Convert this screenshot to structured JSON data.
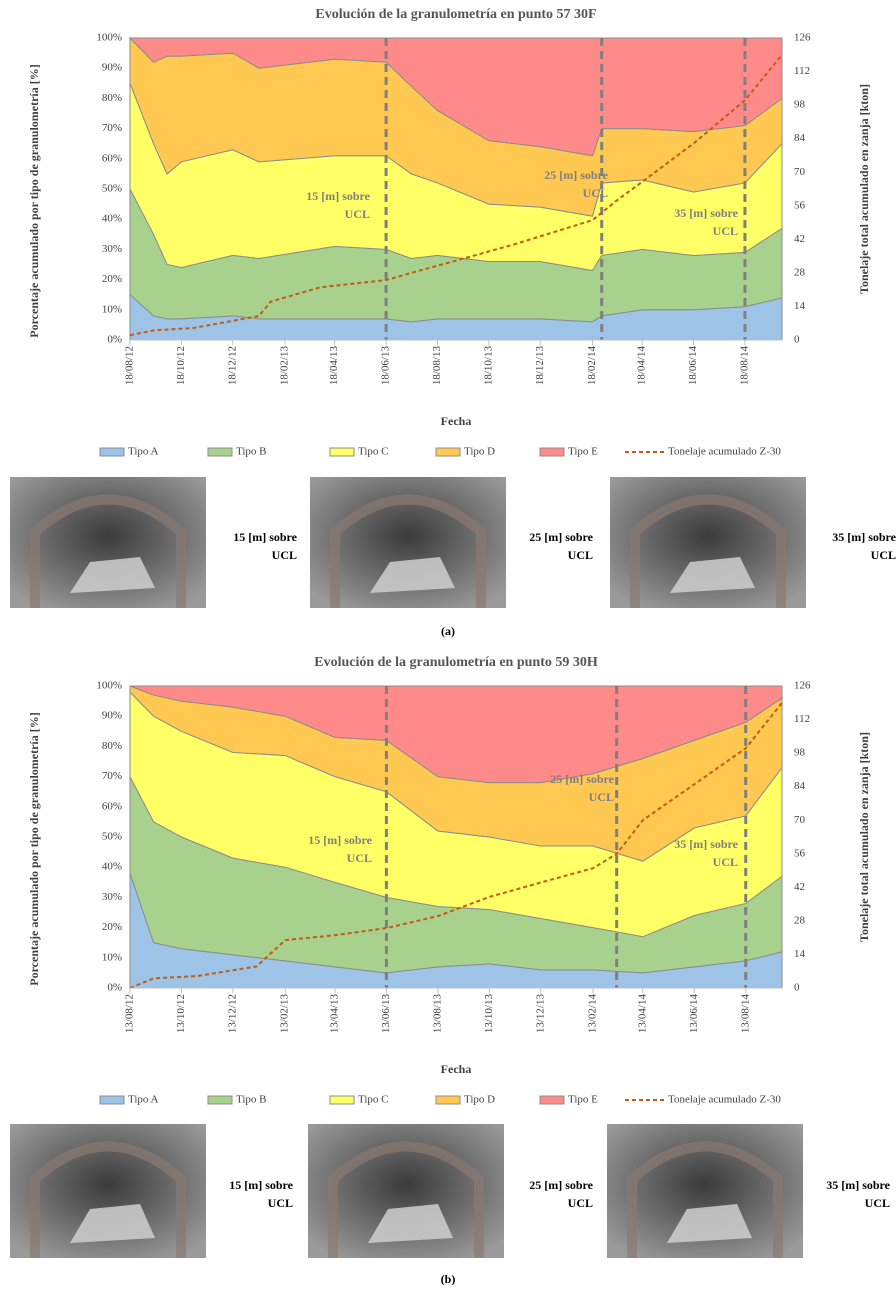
{
  "chart_data": [
    {
      "type": "area",
      "title": "Evolución de la granulometría en punto 57 30F",
      "x_label": "Fecha",
      "y_label": "Porcentaje acumulado por tipo de granulometría [%]",
      "y2_label": "Tonelaje total acumulado en zanja [kton]",
      "stacked": true,
      "legend": "bottom",
      "xlim": [
        "2012-08-18",
        "2014-10-01"
      ],
      "xticks": [
        {
          "value": "2012-08-18",
          "label": "18/08/12"
        },
        {
          "value": "2012-10-18",
          "label": "18/10/12"
        },
        {
          "value": "2012-12-18",
          "label": "18/12/12"
        },
        {
          "value": "2013-02-18",
          "label": "18/02/13"
        },
        {
          "value": "2013-04-18",
          "label": "18/04/13"
        },
        {
          "value": "2013-06-18",
          "label": "18/06/13"
        },
        {
          "value": "2013-08-18",
          "label": "18/08/13"
        },
        {
          "value": "2013-10-18",
          "label": "18/10/13"
        },
        {
          "value": "2013-12-18",
          "label": "18/12/13"
        },
        {
          "value": "2014-02-18",
          "label": "18/02/14"
        },
        {
          "value": "2014-04-18",
          "label": "18/04/14"
        },
        {
          "value": "2014-06-18",
          "label": "18/06/14"
        },
        {
          "value": "2014-08-18",
          "label": "18/08/14"
        }
      ],
      "ylim": [
        0,
        100
      ],
      "yticks": [
        {
          "value": 0,
          "label": "0%"
        },
        {
          "value": 10,
          "label": "10%"
        },
        {
          "value": 20,
          "label": "20%"
        },
        {
          "value": 30,
          "label": "30%"
        },
        {
          "value": 40,
          "label": "40%"
        },
        {
          "value": 50,
          "label": "50%"
        },
        {
          "value": 60,
          "label": "60%"
        },
        {
          "value": 70,
          "label": "70%"
        },
        {
          "value": 80,
          "label": "80%"
        },
        {
          "value": 90,
          "label": "90%"
        },
        {
          "value": 100,
          "label": "100%"
        }
      ],
      "y2lim": [
        0,
        126
      ],
      "y2ticks": [
        0,
        14,
        28,
        42,
        56,
        70,
        84,
        98,
        112,
        126
      ],
      "x": [
        "2012-08-18",
        "2012-09-15",
        "2012-10-01",
        "2012-10-18",
        "2012-12-18",
        "2013-01-18",
        "2013-04-18",
        "2013-06-18",
        "2013-07-18",
        "2013-08-18",
        "2013-10-18",
        "2013-12-18",
        "2014-02-18",
        "2014-03-01",
        "2014-04-18",
        "2014-06-18",
        "2014-08-18",
        "2014-10-01"
      ],
      "series": [
        {
          "name": "Tipo A",
          "color": "#9dc3e6",
          "values": [
            15,
            8,
            7,
            7,
            8,
            7,
            7,
            7,
            6,
            7,
            7,
            7,
            6,
            8,
            10,
            10,
            11,
            14
          ]
        },
        {
          "name": "Tipo B",
          "color": "#a9d18e",
          "values": [
            35,
            27,
            18,
            17,
            20,
            20,
            24,
            23,
            21,
            21,
            19,
            19,
            17,
            20,
            20,
            18,
            18,
            23
          ]
        },
        {
          "name": "Tipo C",
          "color": "#ffff66",
          "values": [
            35,
            30,
            30,
            35,
            35,
            32,
            30,
            31,
            28,
            24,
            19,
            18,
            18,
            24,
            23,
            21,
            23,
            28
          ]
        },
        {
          "name": "Tipo D",
          "color": "#ffc850",
          "values": [
            15,
            27,
            39,
            35,
            32,
            31,
            32,
            31,
            29,
            24,
            21,
            20,
            20,
            18,
            17,
            20,
            19,
            15
          ]
        },
        {
          "name": "Tipo E",
          "color": "#ff8a8a",
          "values": [
            0,
            8,
            6,
            6,
            5,
            10,
            7,
            8,
            16,
            24,
            34,
            36,
            39,
            30,
            30,
            31,
            29,
            20
          ]
        },
        {
          "name": "Tonelaje acumulado Z-30",
          "type": "line",
          "axis": "y2",
          "color": "#c55a11",
          "x": [
            "2012-08-18",
            "2012-09-15",
            "2012-11-01",
            "2012-12-18",
            "2013-01-18",
            "2013-02-01",
            "2013-04-01",
            "2013-06-18",
            "2013-07-18",
            "2013-09-18",
            "2013-11-18",
            "2014-02-18",
            "2014-03-18",
            "2014-04-18",
            "2014-06-18",
            "2014-08-18",
            "2014-10-01"
          ],
          "values": [
            2,
            4,
            5,
            8,
            10,
            16,
            22,
            25,
            28,
            34,
            40,
            50,
            58,
            66,
            82,
            100,
            119
          ]
        }
      ],
      "markers": [
        {
          "x": "2013-06-18",
          "label": [
            "15 [m] sobre",
            "UCL"
          ]
        },
        {
          "x": "2014-03-01",
          "label": [
            "25 [m] sobre",
            "UCL"
          ]
        },
        {
          "x": "2014-08-18",
          "label": [
            "35 [m] sobre",
            "UCL"
          ]
        }
      ]
    },
    {
      "type": "area",
      "title": "Evolución de la granulometría en punto 59 30H",
      "x_label": "Fecha",
      "y_label": "Porcentaje acumulado por tipo de granulometría [%]",
      "y2_label": "Tonelaje total acumulado en zanja [kton]",
      "stacked": true,
      "legend": "bottom",
      "xlim": [
        "2012-08-13",
        "2014-09-25"
      ],
      "xticks": [
        {
          "value": "2012-08-13",
          "label": "13/08/12"
        },
        {
          "value": "2012-10-13",
          "label": "13/10/12"
        },
        {
          "value": "2012-12-13",
          "label": "13/12/12"
        },
        {
          "value": "2013-02-13",
          "label": "13/02/13"
        },
        {
          "value": "2013-04-13",
          "label": "13/04/13"
        },
        {
          "value": "2013-06-13",
          "label": "13/06/13"
        },
        {
          "value": "2013-08-13",
          "label": "13/08/13"
        },
        {
          "value": "2013-10-13",
          "label": "13/10/13"
        },
        {
          "value": "2013-12-13",
          "label": "13/12/13"
        },
        {
          "value": "2014-02-13",
          "label": "13/02/14"
        },
        {
          "value": "2014-04-13",
          "label": "13/04/14"
        },
        {
          "value": "2014-06-13",
          "label": "13/06/14"
        },
        {
          "value": "2014-08-13",
          "label": "13/08/14"
        }
      ],
      "ylim": [
        0,
        100
      ],
      "yticks": [
        {
          "value": 0,
          "label": "0%"
        },
        {
          "value": 10,
          "label": "10%"
        },
        {
          "value": 20,
          "label": "20%"
        },
        {
          "value": 30,
          "label": "30%"
        },
        {
          "value": 40,
          "label": "40%"
        },
        {
          "value": 50,
          "label": "50%"
        },
        {
          "value": 60,
          "label": "60%"
        },
        {
          "value": 70,
          "label": "70%"
        },
        {
          "value": 80,
          "label": "80%"
        },
        {
          "value": 90,
          "label": "90%"
        },
        {
          "value": 100,
          "label": "100%"
        }
      ],
      "y2lim": [
        0,
        126
      ],
      "y2ticks": [
        0,
        14,
        28,
        42,
        56,
        70,
        84,
        98,
        112,
        126
      ],
      "x": [
        "2012-08-13",
        "2012-09-10",
        "2012-10-13",
        "2012-12-13",
        "2013-02-13",
        "2013-04-13",
        "2013-06-13",
        "2013-08-13",
        "2013-10-13",
        "2013-12-13",
        "2014-02-13",
        "2014-04-13",
        "2014-06-13",
        "2014-08-13",
        "2014-09-25"
      ],
      "series": [
        {
          "name": "Tipo A",
          "color": "#9dc3e6",
          "values": [
            38,
            15,
            13,
            11,
            9,
            7,
            5,
            7,
            8,
            6,
            6,
            5,
            7,
            9,
            12
          ]
        },
        {
          "name": "Tipo B",
          "color": "#a9d18e",
          "values": [
            32,
            40,
            37,
            32,
            31,
            28,
            25,
            20,
            18,
            17,
            14,
            12,
            17,
            19,
            25
          ]
        },
        {
          "name": "Tipo C",
          "color": "#ffff66",
          "values": [
            28,
            35,
            35,
            35,
            37,
            35,
            35,
            25,
            24,
            24,
            27,
            25,
            29,
            29,
            36
          ]
        },
        {
          "name": "Tipo D",
          "color": "#ffc850",
          "values": [
            2,
            7,
            10,
            15,
            13,
            13,
            17,
            18,
            18,
            21,
            24,
            34,
            29,
            31,
            23
          ]
        },
        {
          "name": "Tipo E",
          "color": "#ff8a8a",
          "values": [
            0,
            3,
            5,
            7,
            10,
            17,
            18,
            30,
            32,
            32,
            29,
            24,
            18,
            12,
            4
          ]
        },
        {
          "name": "Tonelaje acumulado Z-30",
          "type": "line",
          "axis": "y2",
          "color": "#c55a11",
          "x": [
            "2012-08-13",
            "2012-09-10",
            "2012-11-01",
            "2013-01-10",
            "2013-02-13",
            "2013-04-13",
            "2013-06-13",
            "2013-08-13",
            "2013-10-13",
            "2013-12-13",
            "2014-02-13",
            "2014-03-13",
            "2014-04-13",
            "2014-06-13",
            "2014-08-13",
            "2014-09-25"
          ],
          "values": [
            0,
            4,
            5,
            9,
            20,
            22,
            25,
            30,
            38,
            44,
            50,
            56,
            70,
            85,
            100,
            119
          ]
        }
      ],
      "markers": [
        {
          "x": "2013-06-13",
          "label": [
            "15 [m] sobre",
            "UCL"
          ]
        },
        {
          "x": "2014-03-13",
          "label": [
            "25 [m] sobre",
            "UCL"
          ]
        },
        {
          "x": "2014-08-13",
          "label": [
            "35 [m] sobre",
            "UCL"
          ]
        }
      ]
    }
  ],
  "figures": [
    {
      "captions": [
        [
          "15 [m] sobre",
          "UCL"
        ],
        [
          "25 [m] sobre",
          "UCL"
        ],
        [
          "35 [m] sobre",
          "UCL"
        ]
      ],
      "label": "(a)"
    },
    {
      "captions": [
        [
          "15 [m] sobre",
          "UCL"
        ],
        [
          "25 [m] sobre",
          "UCL"
        ],
        [
          "35 [m] sobre",
          "UCL"
        ]
      ],
      "label": "(b)"
    }
  ]
}
